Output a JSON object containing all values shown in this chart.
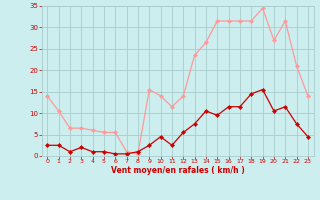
{
  "x": [
    0,
    1,
    2,
    3,
    4,
    5,
    6,
    7,
    8,
    9,
    10,
    11,
    12,
    13,
    14,
    15,
    16,
    17,
    18,
    19,
    20,
    21,
    22,
    23
  ],
  "vent_moyen": [
    2.5,
    2.5,
    1.0,
    2.0,
    1.0,
    1.0,
    0.5,
    0.5,
    1.0,
    2.5,
    4.5,
    2.5,
    5.5,
    7.5,
    10.5,
    9.5,
    11.5,
    11.5,
    14.5,
    15.5,
    10.5,
    11.5,
    7.5,
    4.5
  ],
  "vent_rafales": [
    14.0,
    10.5,
    6.5,
    6.5,
    6.0,
    5.5,
    5.5,
    1.0,
    0.5,
    15.5,
    14.0,
    11.5,
    14.0,
    23.5,
    26.5,
    31.5,
    31.5,
    31.5,
    31.5,
    34.5,
    27.0,
    31.5,
    21.0,
    14.0
  ],
  "color_moyen": "#cc0000",
  "color_rafales": "#ff9999",
  "bg_color": "#cceeee",
  "grid_color": "#aacccc",
  "xlabel": "Vent moyen/en rafales ( km/h )",
  "xlabel_color": "#cc0000",
  "ylabel_color": "#cc0000",
  "ylim": [
    0,
    35
  ],
  "yticks": [
    0,
    5,
    10,
    15,
    20,
    25,
    30,
    35
  ],
  "xticks": [
    0,
    1,
    2,
    3,
    4,
    5,
    6,
    7,
    8,
    9,
    10,
    11,
    12,
    13,
    14,
    15,
    16,
    17,
    18,
    19,
    20,
    21,
    22,
    23
  ]
}
